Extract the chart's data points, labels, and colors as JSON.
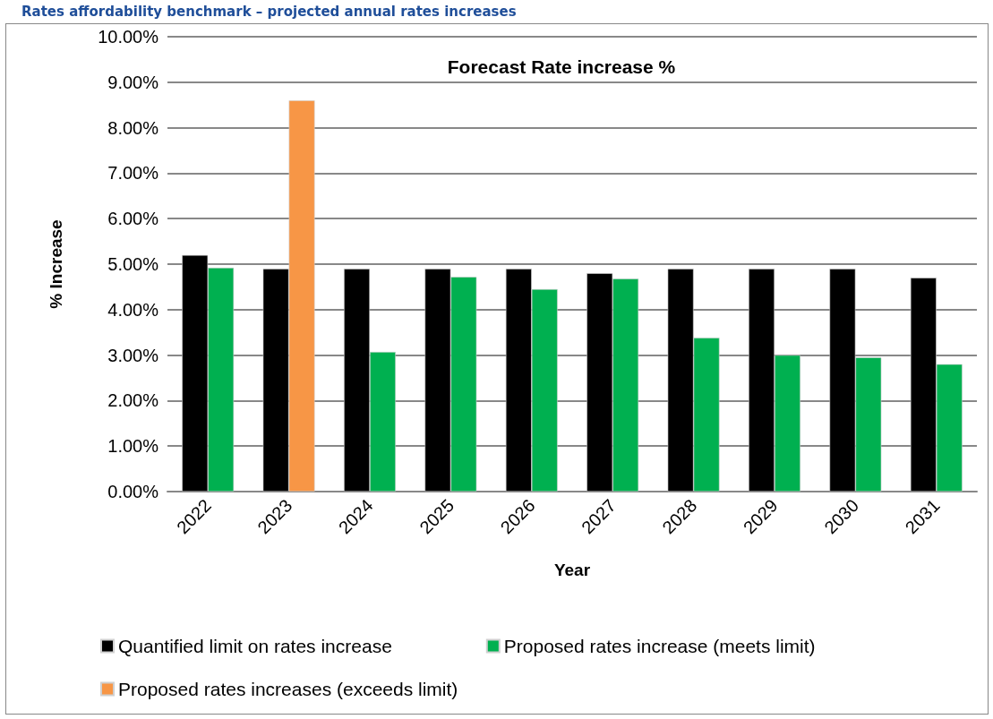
{
  "chart_data": {
    "type": "bar",
    "title": "Rates affordability benchmark – projected annual rates increases",
    "subtitle": "Forecast Rate increase %",
    "xlabel": "Year",
    "ylabel": "% Increase",
    "categories": [
      "2022",
      "2023",
      "2024",
      "2025",
      "2026",
      "2027",
      "2028",
      "2029",
      "2030",
      "2031"
    ],
    "series": [
      {
        "name": "Quantified limit on rates increase",
        "color": "#000000",
        "values": [
          5.2,
          4.9,
          4.9,
          4.9,
          4.9,
          4.8,
          4.9,
          4.9,
          4.9,
          4.7
        ]
      },
      {
        "name": "Proposed rates increase (meets limit)",
        "color": "#00b050",
        "values": [
          4.92,
          null,
          3.07,
          4.72,
          4.45,
          4.68,
          3.38,
          3.0,
          2.95,
          2.8
        ]
      },
      {
        "name": "Proposed rates increases (exceeds limit)",
        "color": "#f79646",
        "values": [
          null,
          8.6,
          null,
          null,
          null,
          null,
          null,
          null,
          null,
          null
        ]
      }
    ],
    "ylim": [
      0,
      10
    ],
    "yticks": [
      {
        "value": 0,
        "label": "0.00%"
      },
      {
        "value": 1,
        "label": "1.00%"
      },
      {
        "value": 2,
        "label": "2.00%"
      },
      {
        "value": 3,
        "label": "3.00%"
      },
      {
        "value": 4,
        "label": "4.00%"
      },
      {
        "value": 5,
        "label": "5.00%"
      },
      {
        "value": 6,
        "label": "6.00%"
      },
      {
        "value": 7,
        "label": "7.00%"
      },
      {
        "value": 8,
        "label": "8.00%"
      },
      {
        "value": 9,
        "label": "9.00%"
      },
      {
        "value": 10,
        "label": "10.00%"
      }
    ],
    "grid": "y",
    "legend": "bottom"
  }
}
